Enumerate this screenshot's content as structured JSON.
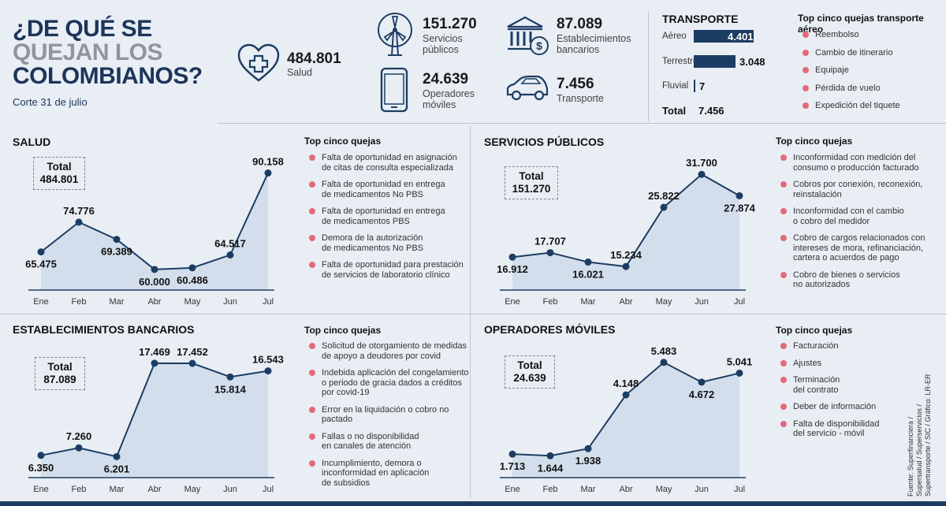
{
  "header": {
    "title_line1": "¿DE QUÉ SE",
    "title_line2": "QUEJAN LOS",
    "title_line3": "COLOMBIANOS?",
    "subtitle": "Corte 31 de julio"
  },
  "kpis": {
    "salud": {
      "value": "484.801",
      "label": "Salud"
    },
    "servicios": {
      "value": "151.270",
      "label_line1": "Servicios",
      "label_line2": "públicos"
    },
    "operadores": {
      "value": "24.639",
      "label_line1": "Operadores",
      "label_line2": "móviles"
    },
    "bancarios": {
      "value": "87.089",
      "label_line1": "Establecimientos",
      "label_line2": "bancarios"
    },
    "transporte": {
      "value": "7.456",
      "label": "Transporte"
    }
  },
  "transport": {
    "title": "TRANSPORTE",
    "rows": [
      {
        "label": "Aéreo",
        "value": "4.401",
        "num": 4401
      },
      {
        "label": "Terrestre",
        "value": "3.048",
        "num": 3048
      },
      {
        "label": "Fluvial",
        "value": "7",
        "num": 7
      }
    ],
    "total_label": "Total",
    "total_value": "7.456",
    "top_title": "Top cinco quejas transporte aéreo",
    "top_items": [
      "Reembolso",
      "Cambio de itinerario",
      "Equipaje",
      "Pérdida de vuelo",
      "Expedición del tiquete"
    ]
  },
  "top_label": "Top cinco quejas",
  "sections": {
    "salud": {
      "title": "SALUD",
      "total_label": "Total",
      "total_value": "484.801",
      "quejas": [
        [
          "Falta de oportunidad en asignación",
          "de citas de consulta especializada"
        ],
        [
          "Falta de oportunidad en entrega",
          "de medicamentos No PBS"
        ],
        [
          "Falta de oportunidad en entrega",
          "de medicamentos PBS"
        ],
        [
          "Demora de la autorización",
          "de medicamentos No PBS"
        ],
        [
          "Falta de oportunidad para prestación",
          "de servicios de laboratorio clínico"
        ]
      ]
    },
    "servicios": {
      "title": "SERVICIOS PÚBLICOS",
      "total_label": "Total",
      "total_value": "151.270",
      "quejas": [
        [
          "Inconformidad con medición del",
          "consumo o producción facturado"
        ],
        [
          "Cobros por conexión, reconexión,",
          "reinstalación"
        ],
        [
          "Inconformidad con el cambio",
          "o cobro del medidor"
        ],
        [
          "Cobro de cargos relacionados con",
          "intereses de mora, refinanciación,",
          "cartera o acuerdos de pago"
        ],
        [
          "Cobro de bienes o servicios",
          "no autorizados"
        ]
      ]
    },
    "bancarios": {
      "title": "ESTABLECIMIENTOS BANCARIOS",
      "total_label": "Total",
      "total_value": "87.089",
      "quejas": [
        [
          "Solicitud de otorgamiento de medidas",
          "de apoyo a deudores por covid"
        ],
        [
          "Indebida aplicación del congelamiento",
          "o periodo de gracia dados a créditos",
          "por covid-19"
        ],
        [
          "Error en la liquidación o cobro no pactado"
        ],
        [
          "Fallas o no disponibilidad",
          "en canales de atención"
        ],
        [
          "Incumplimiento, demora o",
          "inconformidad en aplicación",
          "de subsidios"
        ]
      ]
    },
    "operadores": {
      "title": "OPERADORES MÓVILES",
      "total_label": "Total",
      "total_value": "24.639",
      "quejas": [
        [
          "Facturación"
        ],
        [
          "Ajustes"
        ],
        [
          "Terminación",
          "del contrato"
        ],
        [
          "Deber de información"
        ],
        [
          "Falta de disponibilidad",
          "del servicio - móvil"
        ]
      ]
    }
  },
  "source_line1": "Fuente: Superfinanciera /",
  "source_line2": "Supersalud / Superservicios /",
  "source_line3": "Supertransporte / SIC / Gráfico: LR-ER",
  "colors": {
    "line": "#1c3d63",
    "fill": "#d3deec",
    "dot": "#e36a7a",
    "bar": "#1c3d63"
  },
  "chart_data": [
    {
      "type": "area",
      "title": "SALUD",
      "categories": [
        "Ene",
        "Feb",
        "Mar",
        "Abr",
        "May",
        "Jun",
        "Jul"
      ],
      "values": [
        65475,
        74776,
        69389,
        60000,
        60486,
        64517,
        90158
      ],
      "labels": [
        "65.475",
        "74.776",
        "69.389",
        "60.000",
        "60.486",
        "64.517",
        "90.158"
      ],
      "label_pos": [
        "below",
        "above",
        "below",
        "below",
        "below",
        "above",
        "above"
      ]
    },
    {
      "type": "area",
      "title": "SERVICIOS PÚBLICOS",
      "categories": [
        "Ene",
        "Feb",
        "Mar",
        "Abr",
        "May",
        "Jun",
        "Jul"
      ],
      "values": [
        16912,
        17707,
        16021,
        15234,
        25822,
        31700,
        27874
      ],
      "labels": [
        "16.912",
        "17.707",
        "16.021",
        "15.234",
        "25.822",
        "31.700",
        "27.874"
      ],
      "label_pos": [
        "below",
        "above",
        "below",
        "above",
        "above",
        "above",
        "below"
      ]
    },
    {
      "type": "area",
      "title": "ESTABLECIMIENTOS BANCARIOS",
      "categories": [
        "Ene",
        "Feb",
        "Mar",
        "Abr",
        "May",
        "Jun",
        "Jul"
      ],
      "values": [
        6350,
        7260,
        6201,
        17469,
        17452,
        15814,
        16543
      ],
      "labels": [
        "6.350",
        "7.260",
        "6.201",
        "17.469",
        "17.452",
        "15.814",
        "16.543"
      ],
      "label_pos": [
        "below",
        "above",
        "below",
        "above",
        "above",
        "below",
        "above"
      ]
    },
    {
      "type": "area",
      "title": "OPERADORES MÓVILES",
      "categories": [
        "Ene",
        "Feb",
        "Mar",
        "Abr",
        "May",
        "Jun",
        "Jul"
      ],
      "values": [
        1713,
        1644,
        1938,
        4148,
        5483,
        4672,
        5041
      ],
      "labels": [
        "1.713",
        "1.644",
        "1.938",
        "4.148",
        "5.483",
        "4.672",
        "5.041"
      ],
      "label_pos": [
        "below",
        "below",
        "below",
        "above",
        "above",
        "below",
        "above"
      ]
    },
    {
      "type": "bar",
      "title": "TRANSPORTE",
      "categories": [
        "Aéreo",
        "Terrestre",
        "Fluvial"
      ],
      "values": [
        4401,
        3048,
        7
      ]
    }
  ]
}
